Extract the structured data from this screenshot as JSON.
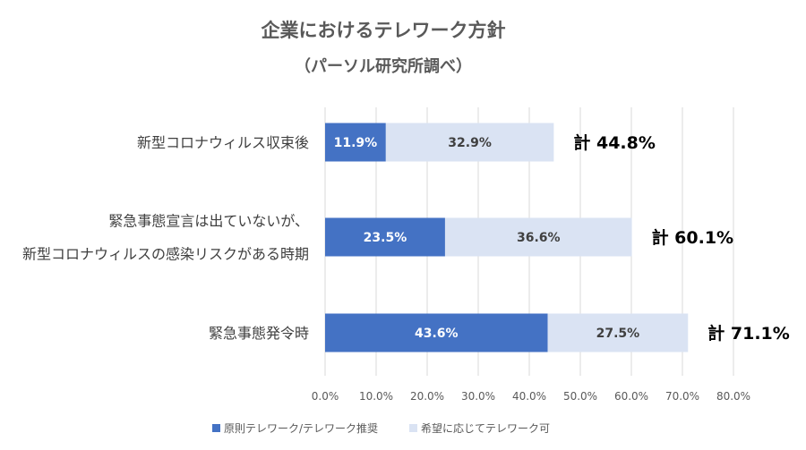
{
  "chart_data": {
    "type": "bar",
    "orientation": "horizontal",
    "stacked": true,
    "title": "企業におけるテレワーク方針",
    "subtitle": "（パーソル研究所調べ）",
    "categories": [
      [
        "新型コロナウィルス収束後"
      ],
      [
        "緊急事態宣言は出ていないが、",
        "新型コロナウィルスの感染リスクがある時期"
      ],
      [
        "緊急事態発令時"
      ]
    ],
    "series": [
      {
        "name": "原則テレワーク/テレワーク推奨",
        "values": [
          11.9,
          23.5,
          43.6
        ],
        "labels": [
          "11.9%",
          "23.5%",
          "43.6%"
        ],
        "color": "#4472C4",
        "label_color": "#ffffff"
      },
      {
        "name": "希望に応じてテレワーク可",
        "values": [
          32.9,
          36.6,
          27.5
        ],
        "labels": [
          "32.9%",
          "36.6%",
          "27.5%"
        ],
        "color": "#DAE3F3",
        "label_color": "#404040"
      }
    ],
    "totals": [
      "計 44.8%",
      "計 60.1%",
      "計 71.1%"
    ],
    "xlim": [
      0,
      80
    ],
    "ticks": [
      0,
      10,
      20,
      30,
      40,
      50,
      60,
      70,
      80
    ],
    "tick_labels": [
      "0.0%",
      "10.0%",
      "20.0%",
      "30.0%",
      "40.0%",
      "50.0%",
      "60.0%",
      "70.0%",
      "80.0%"
    ],
    "grid": true,
    "grid_color": "#D9D9D9",
    "legend_position": "bottom"
  }
}
